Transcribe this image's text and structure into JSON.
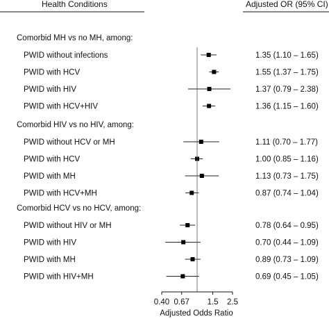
{
  "header": {
    "left": "Health Conditions",
    "right": "Adjusted OR (95% CI)"
  },
  "chart_data": {
    "type": "forest",
    "x_scale": "log",
    "xlim": [
      0.4,
      2.5
    ],
    "reference_line": 1.0,
    "xlabel": "Adjusted Odds Ratio",
    "ticks": [
      {
        "value": 0.4,
        "label": "0.40"
      },
      {
        "value": 0.67,
        "label": "0.67"
      },
      {
        "value": 1.5,
        "label": "1.5"
      },
      {
        "value": 2.5,
        "label": "2.5"
      }
    ],
    "groups": [
      {
        "title": "Comorbid MH vs no MH, among:",
        "rows": [
          {
            "label": "PWID without infections",
            "or": 1.35,
            "lo": 1.1,
            "hi": 1.65,
            "text": "1.35 (1.10 – 1.65)"
          },
          {
            "label": "PWID with HCV",
            "or": 1.55,
            "lo": 1.37,
            "hi": 1.75,
            "text": "1.55 (1.37 – 1.75)"
          },
          {
            "label": "PWID with HIV",
            "or": 1.37,
            "lo": 0.79,
            "hi": 2.38,
            "text": "1.37 (0.79 – 2.38)"
          },
          {
            "label": "PWID with HCV+HIV",
            "or": 1.36,
            "lo": 1.15,
            "hi": 1.6,
            "text": "1.36 (1.15 – 1.60)"
          }
        ]
      },
      {
        "title": "Comorbid HIV vs no HIV, among:",
        "rows": [
          {
            "label": "PWID without HCV or MH",
            "or": 1.11,
            "lo": 0.7,
            "hi": 1.77,
            "text": "1.11 (0.70 – 1.77)"
          },
          {
            "label": "PWID with HCV",
            "or": 1.0,
            "lo": 0.85,
            "hi": 1.16,
            "text": "1.00 (0.85 – 1.16)"
          },
          {
            "label": "PWID with MH",
            "or": 1.13,
            "lo": 0.73,
            "hi": 1.75,
            "text": "1.13 (0.73 – 1.75)"
          },
          {
            "label": "PWID with HCV+MH",
            "or": 0.87,
            "lo": 0.74,
            "hi": 1.04,
            "text": "0.87 (0.74 – 1.04)"
          }
        ]
      },
      {
        "title": "Comorbid HCV vs no HCV, among:",
        "rows": [
          {
            "label": "PWID without HIV or MH",
            "or": 0.78,
            "lo": 0.64,
            "hi": 0.95,
            "text": "0.78 (0.64 – 0.95)"
          },
          {
            "label": "PWID with HIV",
            "or": 0.7,
            "lo": 0.44,
            "hi": 1.09,
            "text": "0.70 (0.44 – 1.09)"
          },
          {
            "label": "PWID with MH",
            "or": 0.89,
            "lo": 0.73,
            "hi": 1.09,
            "text": "0.89 (0.73 – 1.09)"
          },
          {
            "label": "PWID with HIV+MH",
            "or": 0.69,
            "lo": 0.45,
            "hi": 1.05,
            "text": "0.69 (0.45 – 1.05)"
          }
        ]
      }
    ]
  }
}
